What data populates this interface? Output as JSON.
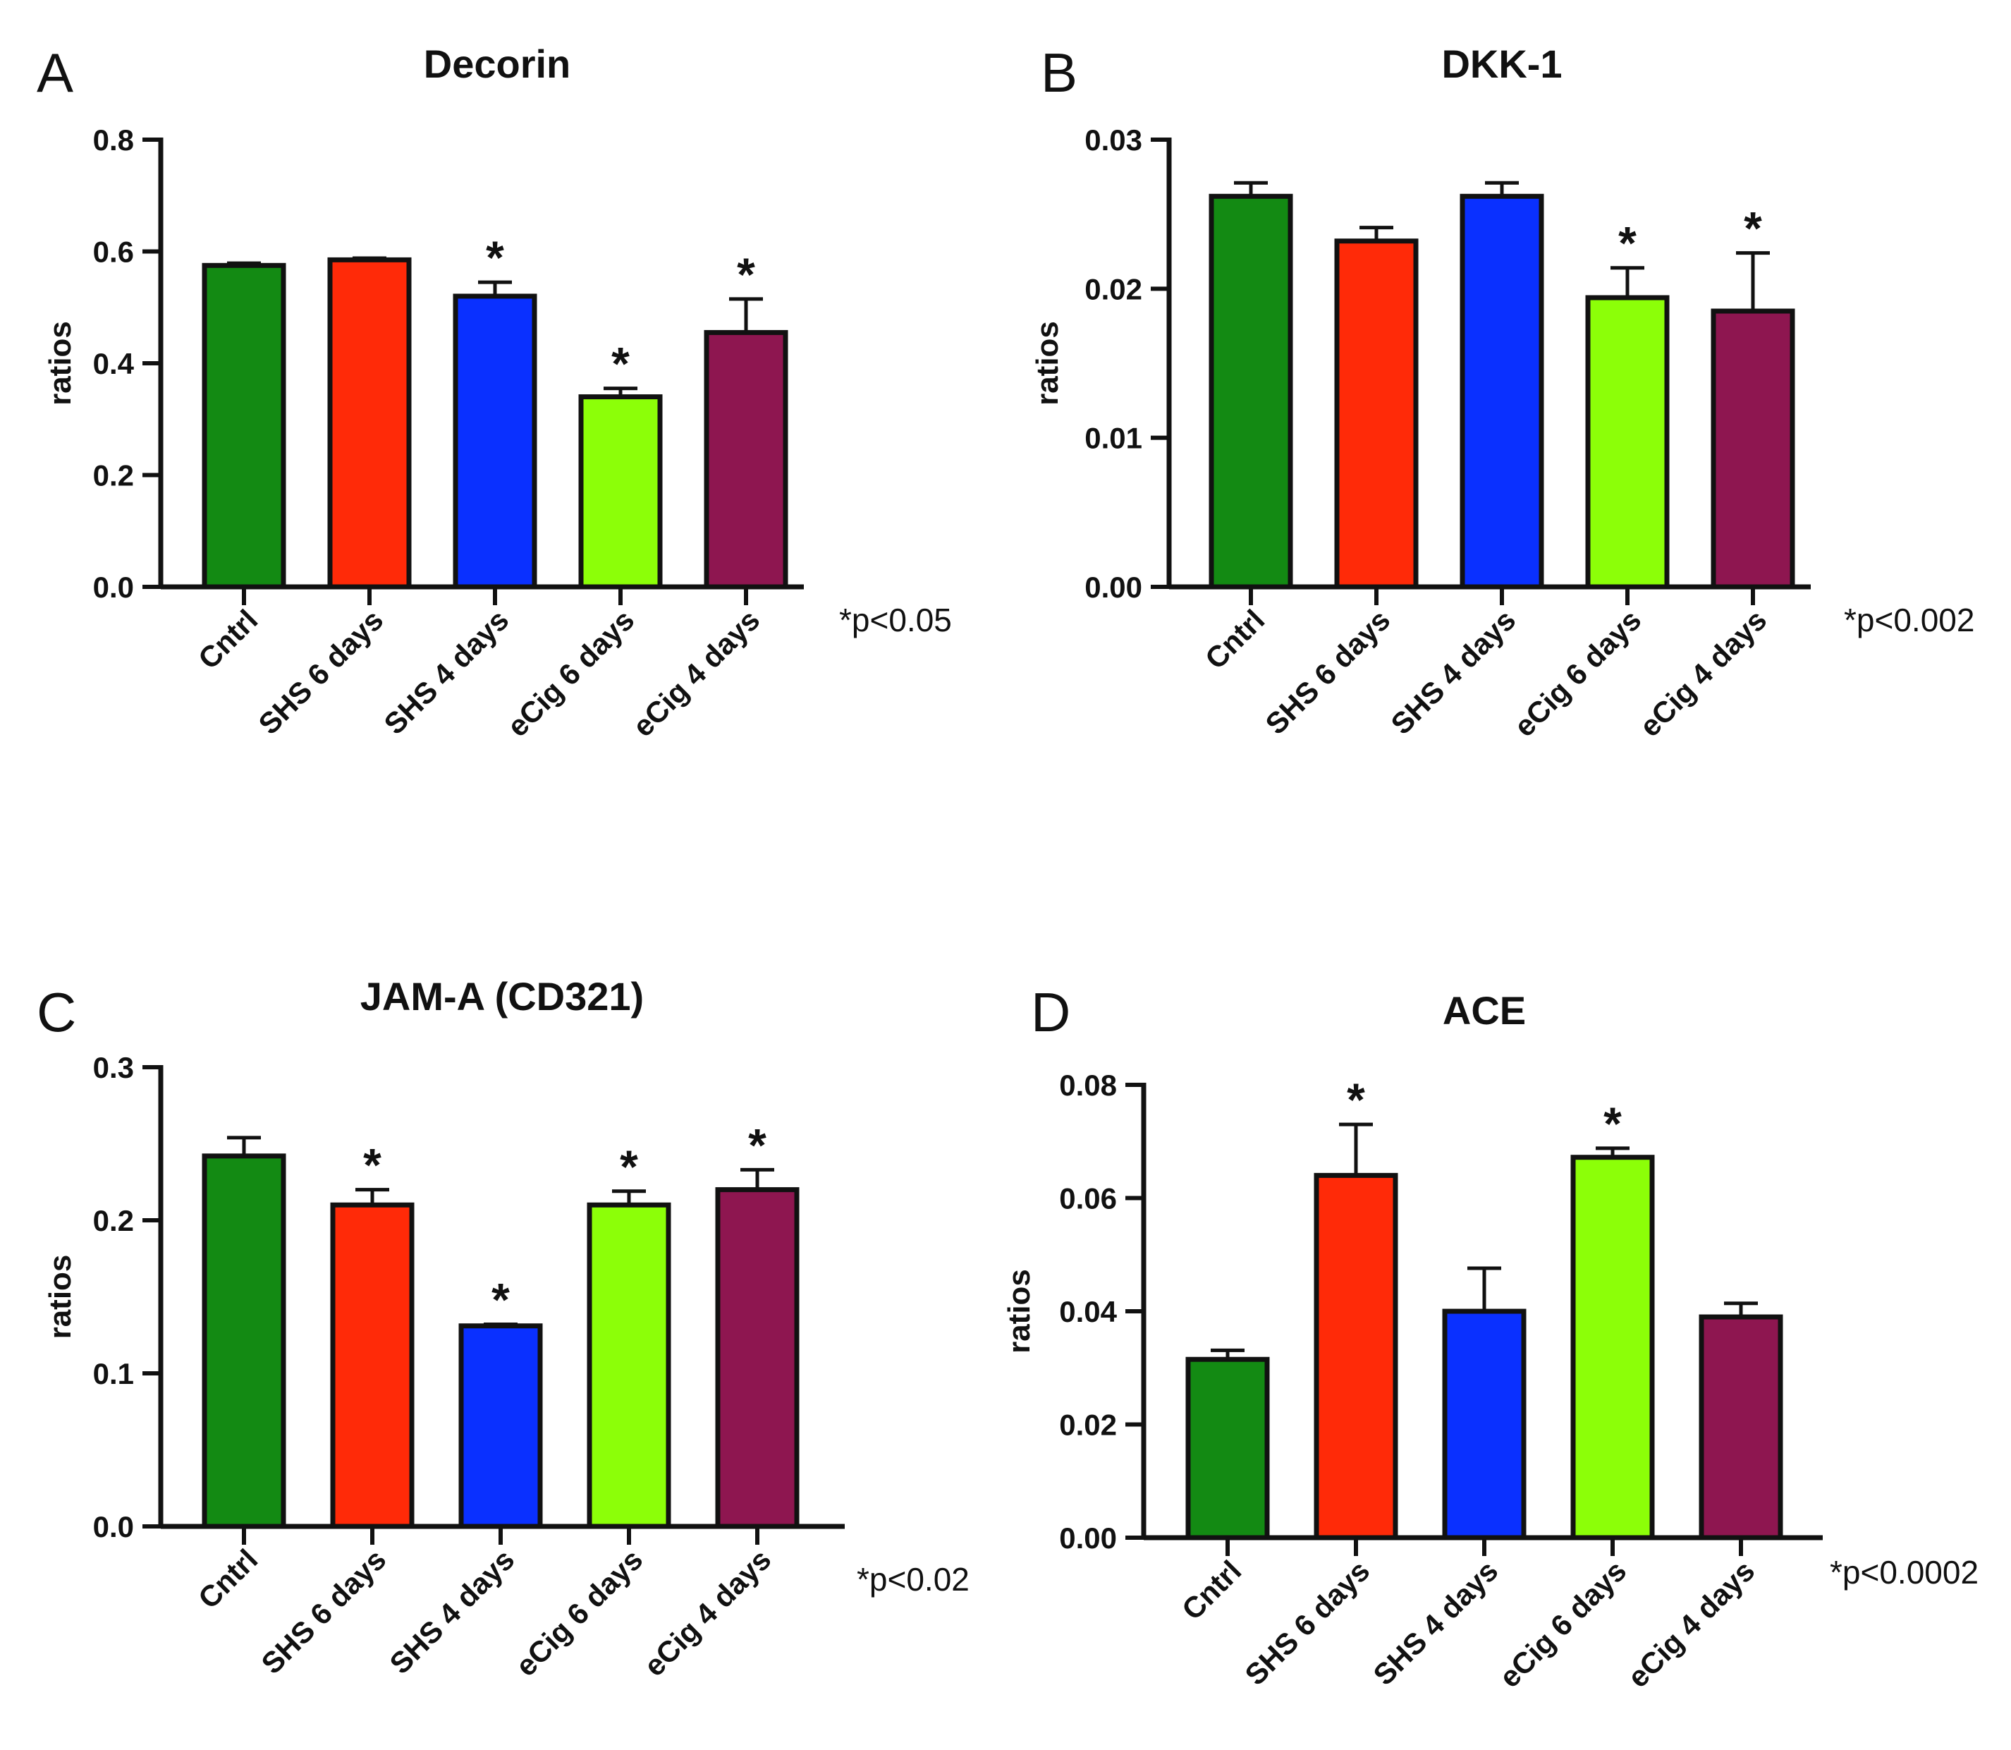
{
  "figure": {
    "category_colors": [
      "#138a13",
      "#ff2a08",
      "#0a30ff",
      "#8cff08",
      "#8e1650"
    ]
  },
  "chart_data": [
    {
      "panel": "A",
      "type": "bar",
      "title": "Decorin",
      "ylabel": "ratios",
      "xlabel": "",
      "categories": [
        "Cntrl",
        "SHS 6 days",
        "SHS 4 days",
        "eCig 6 days",
        "eCig 4 days"
      ],
      "values": [
        0.575,
        0.585,
        0.52,
        0.34,
        0.455
      ],
      "error": [
        0.004,
        0.003,
        0.025,
        0.015,
        0.06
      ],
      "significant": [
        false,
        false,
        true,
        true,
        true
      ],
      "sig_symbol": "*",
      "ylim": [
        0,
        0.8
      ],
      "yticks": [
        0.0,
        0.2,
        0.4,
        0.6,
        0.8
      ],
      "ytick_labels": [
        "0.0",
        "0.2",
        "0.4",
        "0.6",
        "0.8"
      ],
      "p_note": "*p<0.05",
      "grid": false,
      "legend": "none"
    },
    {
      "panel": "B",
      "type": "bar",
      "title": "DKK-1",
      "ylabel": "ratios",
      "xlabel": "",
      "categories": [
        "Cntrl",
        "SHS 6 days",
        "SHS 4 days",
        "eCig 6 days",
        "eCig 4 days"
      ],
      "values": [
        0.0262,
        0.0232,
        0.0262,
        0.0194,
        0.0185
      ],
      "error": [
        0.0009,
        0.0009,
        0.0009,
        0.002,
        0.0039
      ],
      "significant": [
        false,
        false,
        false,
        true,
        true
      ],
      "sig_symbol": "*",
      "ylim": [
        0,
        0.03
      ],
      "yticks": [
        0.0,
        0.01,
        0.02,
        0.03
      ],
      "ytick_labels": [
        "0.00",
        "0.01",
        "0.02",
        "0.03"
      ],
      "p_note": "*p<0.002",
      "grid": false,
      "legend": "none"
    },
    {
      "panel": "C",
      "type": "bar",
      "title": "JAM-A (CD321)",
      "ylabel": "ratios",
      "xlabel": "",
      "categories": [
        "Cntrl",
        "SHS 6 days",
        "SHS 4 days",
        "eCig 6 days",
        "eCig 4 days"
      ],
      "values": [
        0.242,
        0.21,
        0.131,
        0.21,
        0.22
      ],
      "error": [
        0.012,
        0.01,
        0.001,
        0.009,
        0.013
      ],
      "significant": [
        false,
        true,
        true,
        true,
        true
      ],
      "sig_symbol": "*",
      "ylim": [
        0,
        0.3
      ],
      "yticks": [
        0.0,
        0.1,
        0.2,
        0.3
      ],
      "ytick_labels": [
        "0.0",
        "0.1",
        "0.2",
        "0.3"
      ],
      "p_note": "*p<0.02",
      "grid": false,
      "legend": "none"
    },
    {
      "panel": "D",
      "type": "bar",
      "title": "ACE",
      "ylabel": "ratios",
      "xlabel": "",
      "categories": [
        "Cntrl",
        "SHS 6 days",
        "SHS 4 days",
        "eCig 6 days",
        "eCig 4 days"
      ],
      "values": [
        0.0315,
        0.064,
        0.04,
        0.0672,
        0.039
      ],
      "error": [
        0.0016,
        0.009,
        0.0076,
        0.0016,
        0.0024
      ],
      "significant": [
        false,
        true,
        false,
        true,
        false
      ],
      "sig_symbol": "*",
      "ylim": [
        0,
        0.08
      ],
      "yticks": [
        0.0,
        0.02,
        0.04,
        0.06,
        0.08
      ],
      "ytick_labels": [
        "0.00",
        "0.02",
        "0.04",
        "0.06",
        "0.08"
      ],
      "p_note": "*p<0.0002",
      "grid": false,
      "legend": "none"
    }
  ]
}
